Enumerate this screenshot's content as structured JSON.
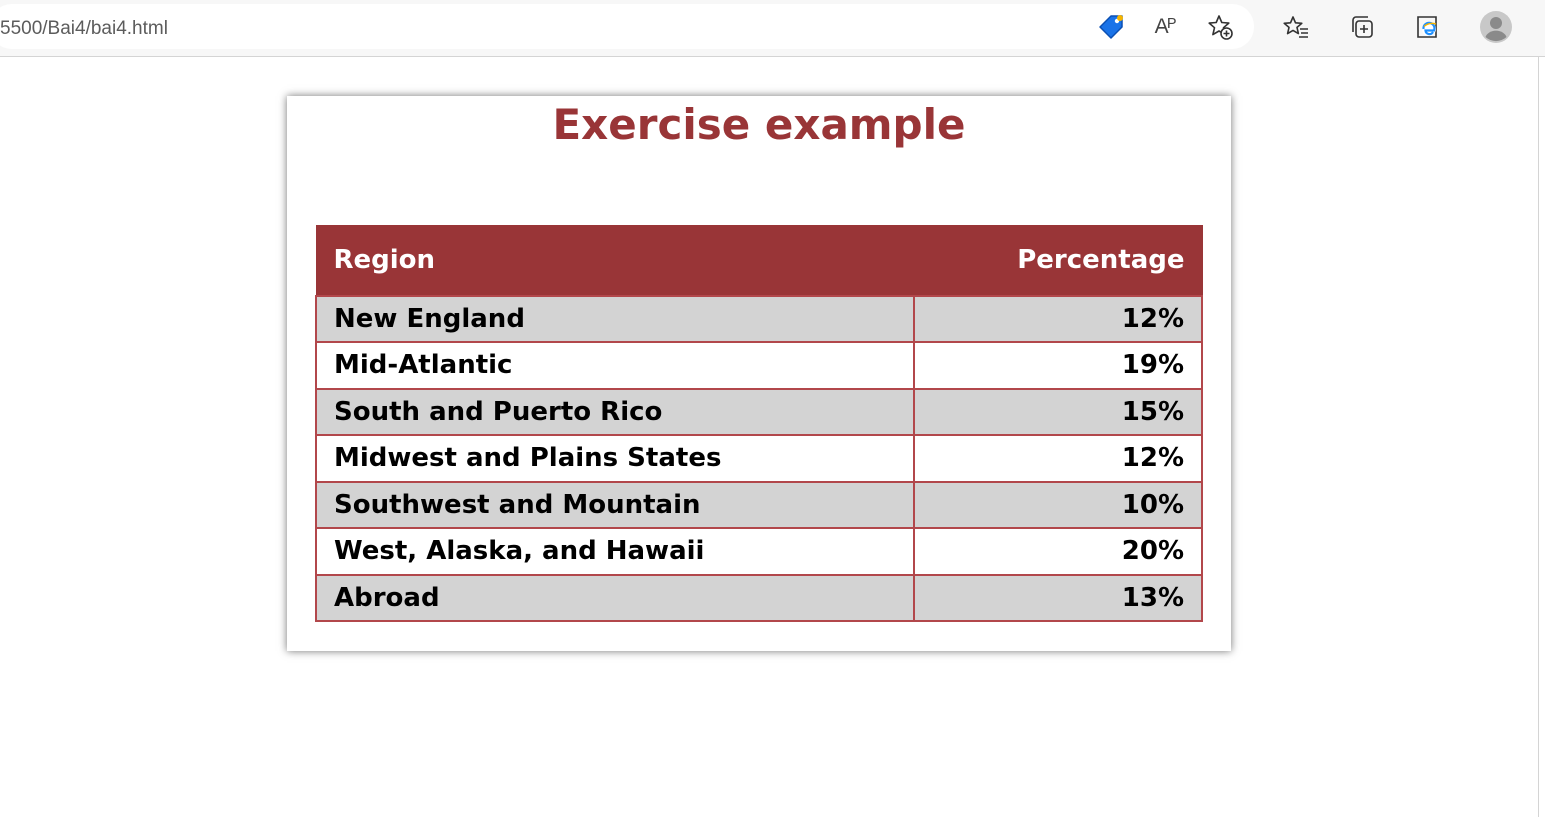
{
  "browser": {
    "url": "5500/Bai4/bai4.html",
    "read_aloud_label": "Aᴾ",
    "icons": {
      "tag": "tag-icon",
      "read_aloud": "read-aloud-icon",
      "add_favorite": "add-favorite-icon",
      "favorites": "favorites-icon",
      "collections": "collections-icon",
      "ie_mode": "ie-mode-icon",
      "profile": "profile-avatar-icon"
    }
  },
  "page": {
    "title": "Exercise example",
    "table": {
      "headers": [
        "Region",
        "Percentage"
      ],
      "rows": [
        {
          "region": "New England",
          "percentage": "12%"
        },
        {
          "region": "Mid-Atlantic",
          "percentage": "19%"
        },
        {
          "region": "South and Puerto Rico",
          "percentage": "15%"
        },
        {
          "region": "Midwest and Plains States",
          "percentage": "12%"
        },
        {
          "region": "Southwest and Mountain",
          "percentage": "10%"
        },
        {
          "region": "West, Alaska, and Hawaii",
          "percentage": "20%"
        },
        {
          "region": "Abroad",
          "percentage": "13%"
        }
      ]
    }
  },
  "colors": {
    "accent": "#993537",
    "row_alt": "#d3d3d3",
    "border": "#b2474b"
  }
}
